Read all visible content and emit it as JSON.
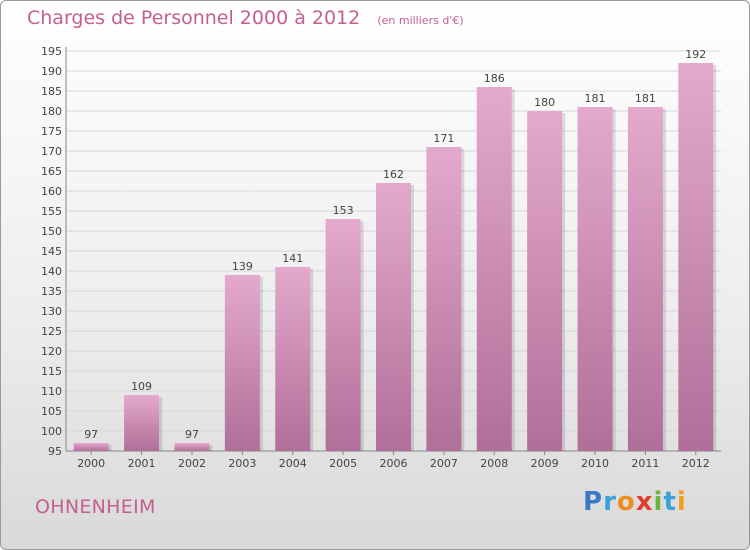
{
  "chart_data": {
    "type": "bar",
    "title": "Charges de Personnel 2000 à 2012",
    "subtitle": "(en milliers d'€)",
    "categories": [
      "2000",
      "2001",
      "2002",
      "2003",
      "2004",
      "2005",
      "2006",
      "2007",
      "2008",
      "2009",
      "2010",
      "2011",
      "2012"
    ],
    "values": [
      97,
      109,
      97,
      139,
      141,
      153,
      162,
      171,
      186,
      180,
      181,
      181,
      192
    ],
    "ylim": [
      95,
      195
    ],
    "ytick_step": 5,
    "grid": true,
    "bar_colors": {
      "top": "#e5a9cd",
      "bottom": "#b06f99"
    }
  },
  "footer": {
    "commune": "OHNENHEIM",
    "logo_text": "Proxiti",
    "logo_letter_colors": [
      "#3a78c8",
      "#3aa0d8",
      "#f08c1e",
      "#e43c2c",
      "#6cb43c",
      "#3aa0d8",
      "#f0a01e"
    ]
  }
}
